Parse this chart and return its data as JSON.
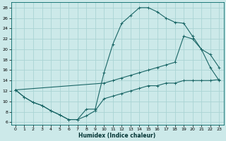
{
  "xlabel": "Humidex (Indice chaleur)",
  "bg_color": "#cce9e9",
  "grid_color": "#aad4d4",
  "line_color": "#1a6666",
  "xlim": [
    -0.5,
    23.5
  ],
  "ylim": [
    5.5,
    29
  ],
  "xticks": [
    0,
    1,
    2,
    3,
    4,
    5,
    6,
    7,
    8,
    9,
    10,
    11,
    12,
    13,
    14,
    15,
    16,
    17,
    18,
    19,
    20,
    21,
    22,
    23
  ],
  "yticks": [
    6,
    8,
    10,
    12,
    14,
    16,
    18,
    20,
    22,
    24,
    26,
    28
  ],
  "line1_x": [
    0,
    1,
    2,
    3,
    4,
    5,
    6,
    7,
    8,
    9,
    10,
    11,
    12,
    13,
    14,
    15,
    16,
    17,
    18,
    19,
    20,
    21,
    22,
    23
  ],
  "line1_y": [
    12.2,
    10.8,
    9.8,
    9.2,
    8.2,
    7.4,
    6.5,
    6.5,
    8.5,
    8.5,
    15.5,
    21.0,
    25.0,
    26.5,
    28.0,
    28.0,
    27.2,
    26.0,
    25.2,
    25.0,
    22.5,
    20.0,
    16.5,
    14.0
  ],
  "line2_x": [
    0,
    10,
    11,
    12,
    13,
    14,
    15,
    16,
    17,
    18,
    19,
    20,
    21,
    22,
    23
  ],
  "line2_y": [
    12.2,
    13.5,
    14.0,
    14.5,
    15.0,
    15.5,
    16.0,
    16.5,
    17.0,
    17.5,
    22.5,
    22.0,
    20.0,
    19.0,
    16.5
  ],
  "line3_x": [
    0,
    1,
    2,
    3,
    4,
    5,
    6,
    7,
    8,
    9,
    10,
    11,
    12,
    13,
    14,
    15,
    16,
    17,
    18,
    19,
    20,
    21,
    22,
    23
  ],
  "line3_y": [
    12.2,
    10.8,
    9.8,
    9.2,
    8.2,
    7.4,
    6.5,
    6.5,
    7.2,
    8.2,
    10.5,
    11.0,
    11.5,
    12.0,
    12.5,
    13.0,
    13.0,
    13.5,
    13.5,
    14.0,
    14.0,
    14.0,
    14.0,
    14.2
  ]
}
